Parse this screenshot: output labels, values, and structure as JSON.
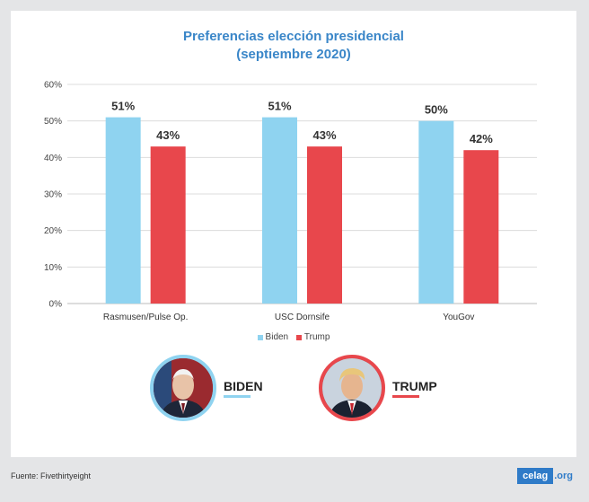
{
  "title": {
    "line1": "Preferencias elección presidencial",
    "line2": "(septiembre 2020)"
  },
  "colors": {
    "biden": "#8fd3f0",
    "trump": "#e8474c",
    "title": "#3a86c8",
    "grid": "#dcdcdc"
  },
  "chart_data": {
    "type": "bar",
    "title": "Preferencias elección presidencial (septiembre 2020)",
    "categories": [
      "Rasmusen/Pulse Op.",
      "USC Dornsife",
      "YouGov"
    ],
    "series": [
      {
        "name": "Biden",
        "values": [
          51,
          51,
          50
        ]
      },
      {
        "name": "Trump",
        "values": [
          43,
          43,
          42
        ]
      }
    ],
    "yticks": [
      "0%",
      "10%",
      "20%",
      "30%",
      "40%",
      "50%",
      "60%"
    ],
    "ylim": [
      0,
      60
    ],
    "xlabel": "",
    "ylabel": "",
    "legend": "bottom-center"
  },
  "candidates": [
    {
      "name": "BIDEN",
      "color": "#8fd3f0"
    },
    {
      "name": "TRUMP",
      "color": "#e8474c"
    }
  ],
  "footer": {
    "source": "Fuente: Fivethirtyeight",
    "brand": "celag",
    "brand_tld": ".org"
  }
}
